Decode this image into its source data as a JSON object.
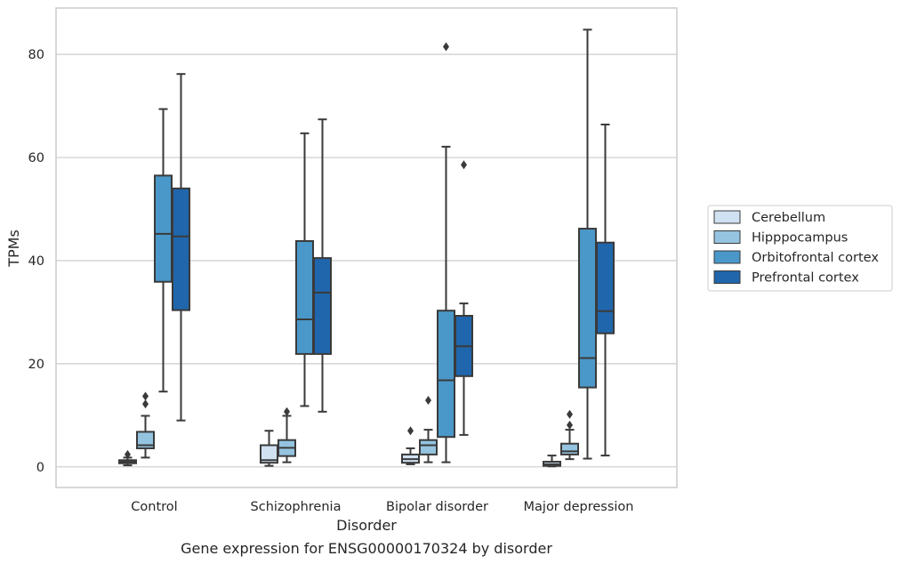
{
  "chart_data": {
    "type": "box",
    "xlabel": "Disorder",
    "ylabel": "TPMs",
    "caption": "Gene expression for ENSG00000170324 by disorder",
    "ylim": [
      -4,
      89
    ],
    "yticks": [
      0,
      20,
      40,
      60,
      80
    ],
    "grid": "horizontal",
    "legend_position": "right",
    "categories": [
      "Control",
      "Schizophrenia",
      "Bipolar disorder",
      "Major depression"
    ],
    "series": [
      {
        "name": "Cerebellum",
        "color": "#d0e1f2",
        "boxes": [
          {
            "whisker_low": 0.3,
            "q1": 0.7,
            "median": 1.0,
            "q3": 1.3,
            "whisker_high": 1.8,
            "outliers": [
              2.4
            ]
          },
          {
            "whisker_low": 0.2,
            "q1": 0.8,
            "median": 1.3,
            "q3": 4.2,
            "whisker_high": 7.0,
            "outliers": []
          },
          {
            "whisker_low": 0.5,
            "q1": 0.8,
            "median": 1.5,
            "q3": 2.4,
            "whisker_high": 3.6,
            "outliers": [
              7.0
            ]
          },
          {
            "whisker_low": 0.1,
            "q1": 0.2,
            "median": 0.5,
            "q3": 1.0,
            "whisker_high": 2.2,
            "outliers": []
          }
        ]
      },
      {
        "name": "Hipppocampus",
        "color": "#94c4df",
        "boxes": [
          {
            "whisker_low": 1.8,
            "q1": 3.6,
            "median": 4.2,
            "q3": 6.8,
            "whisker_high": 9.9,
            "outliers": [
              12.2,
              13.7
            ]
          },
          {
            "whisker_low": 0.9,
            "q1": 2.1,
            "median": 3.7,
            "q3": 5.2,
            "whisker_high": 9.9,
            "outliers": [
              10.7
            ]
          },
          {
            "whisker_low": 0.9,
            "q1": 2.4,
            "median": 4.2,
            "q3": 5.2,
            "whisker_high": 7.2,
            "outliers": [
              12.9
            ]
          },
          {
            "whisker_low": 1.5,
            "q1": 2.4,
            "median": 3.0,
            "q3": 4.5,
            "whisker_high": 7.2,
            "outliers": [
              8.1,
              10.2
            ]
          }
        ]
      },
      {
        "name": "Orbitofrontal cortex",
        "color": "#4a98c9",
        "boxes": [
          {
            "whisker_low": 14.6,
            "q1": 35.9,
            "median": 45.2,
            "q3": 56.5,
            "whisker_high": 69.4,
            "outliers": []
          },
          {
            "whisker_low": 11.8,
            "q1": 21.9,
            "median": 28.6,
            "q3": 43.8,
            "whisker_high": 64.7,
            "outliers": []
          },
          {
            "whisker_low": 0.9,
            "q1": 5.8,
            "median": 16.8,
            "q3": 30.3,
            "whisker_high": 62.1,
            "outliers": [
              81.5
            ]
          },
          {
            "whisker_low": 1.6,
            "q1": 15.4,
            "median": 21.1,
            "q3": 46.2,
            "whisker_high": 84.8,
            "outliers": []
          }
        ]
      },
      {
        "name": "Prefrontal cortex",
        "color": "#2066ac",
        "boxes": [
          {
            "whisker_low": 9.0,
            "q1": 30.4,
            "median": 44.7,
            "q3": 54.0,
            "whisker_high": 76.2,
            "outliers": []
          },
          {
            "whisker_low": 10.7,
            "q1": 21.9,
            "median": 33.8,
            "q3": 40.5,
            "whisker_high": 67.4,
            "outliers": []
          },
          {
            "whisker_low": 6.2,
            "q1": 17.6,
            "median": 23.4,
            "q3": 29.3,
            "whisker_high": 31.7,
            "outliers": [
              58.6
            ]
          },
          {
            "whisker_low": 2.2,
            "q1": 25.9,
            "median": 30.2,
            "q3": 43.5,
            "whisker_high": 66.4,
            "outliers": []
          }
        ]
      }
    ]
  },
  "colors": {
    "box_line": "#3a3a3a",
    "grid": "#cccccc",
    "frame": "#cccccc"
  }
}
